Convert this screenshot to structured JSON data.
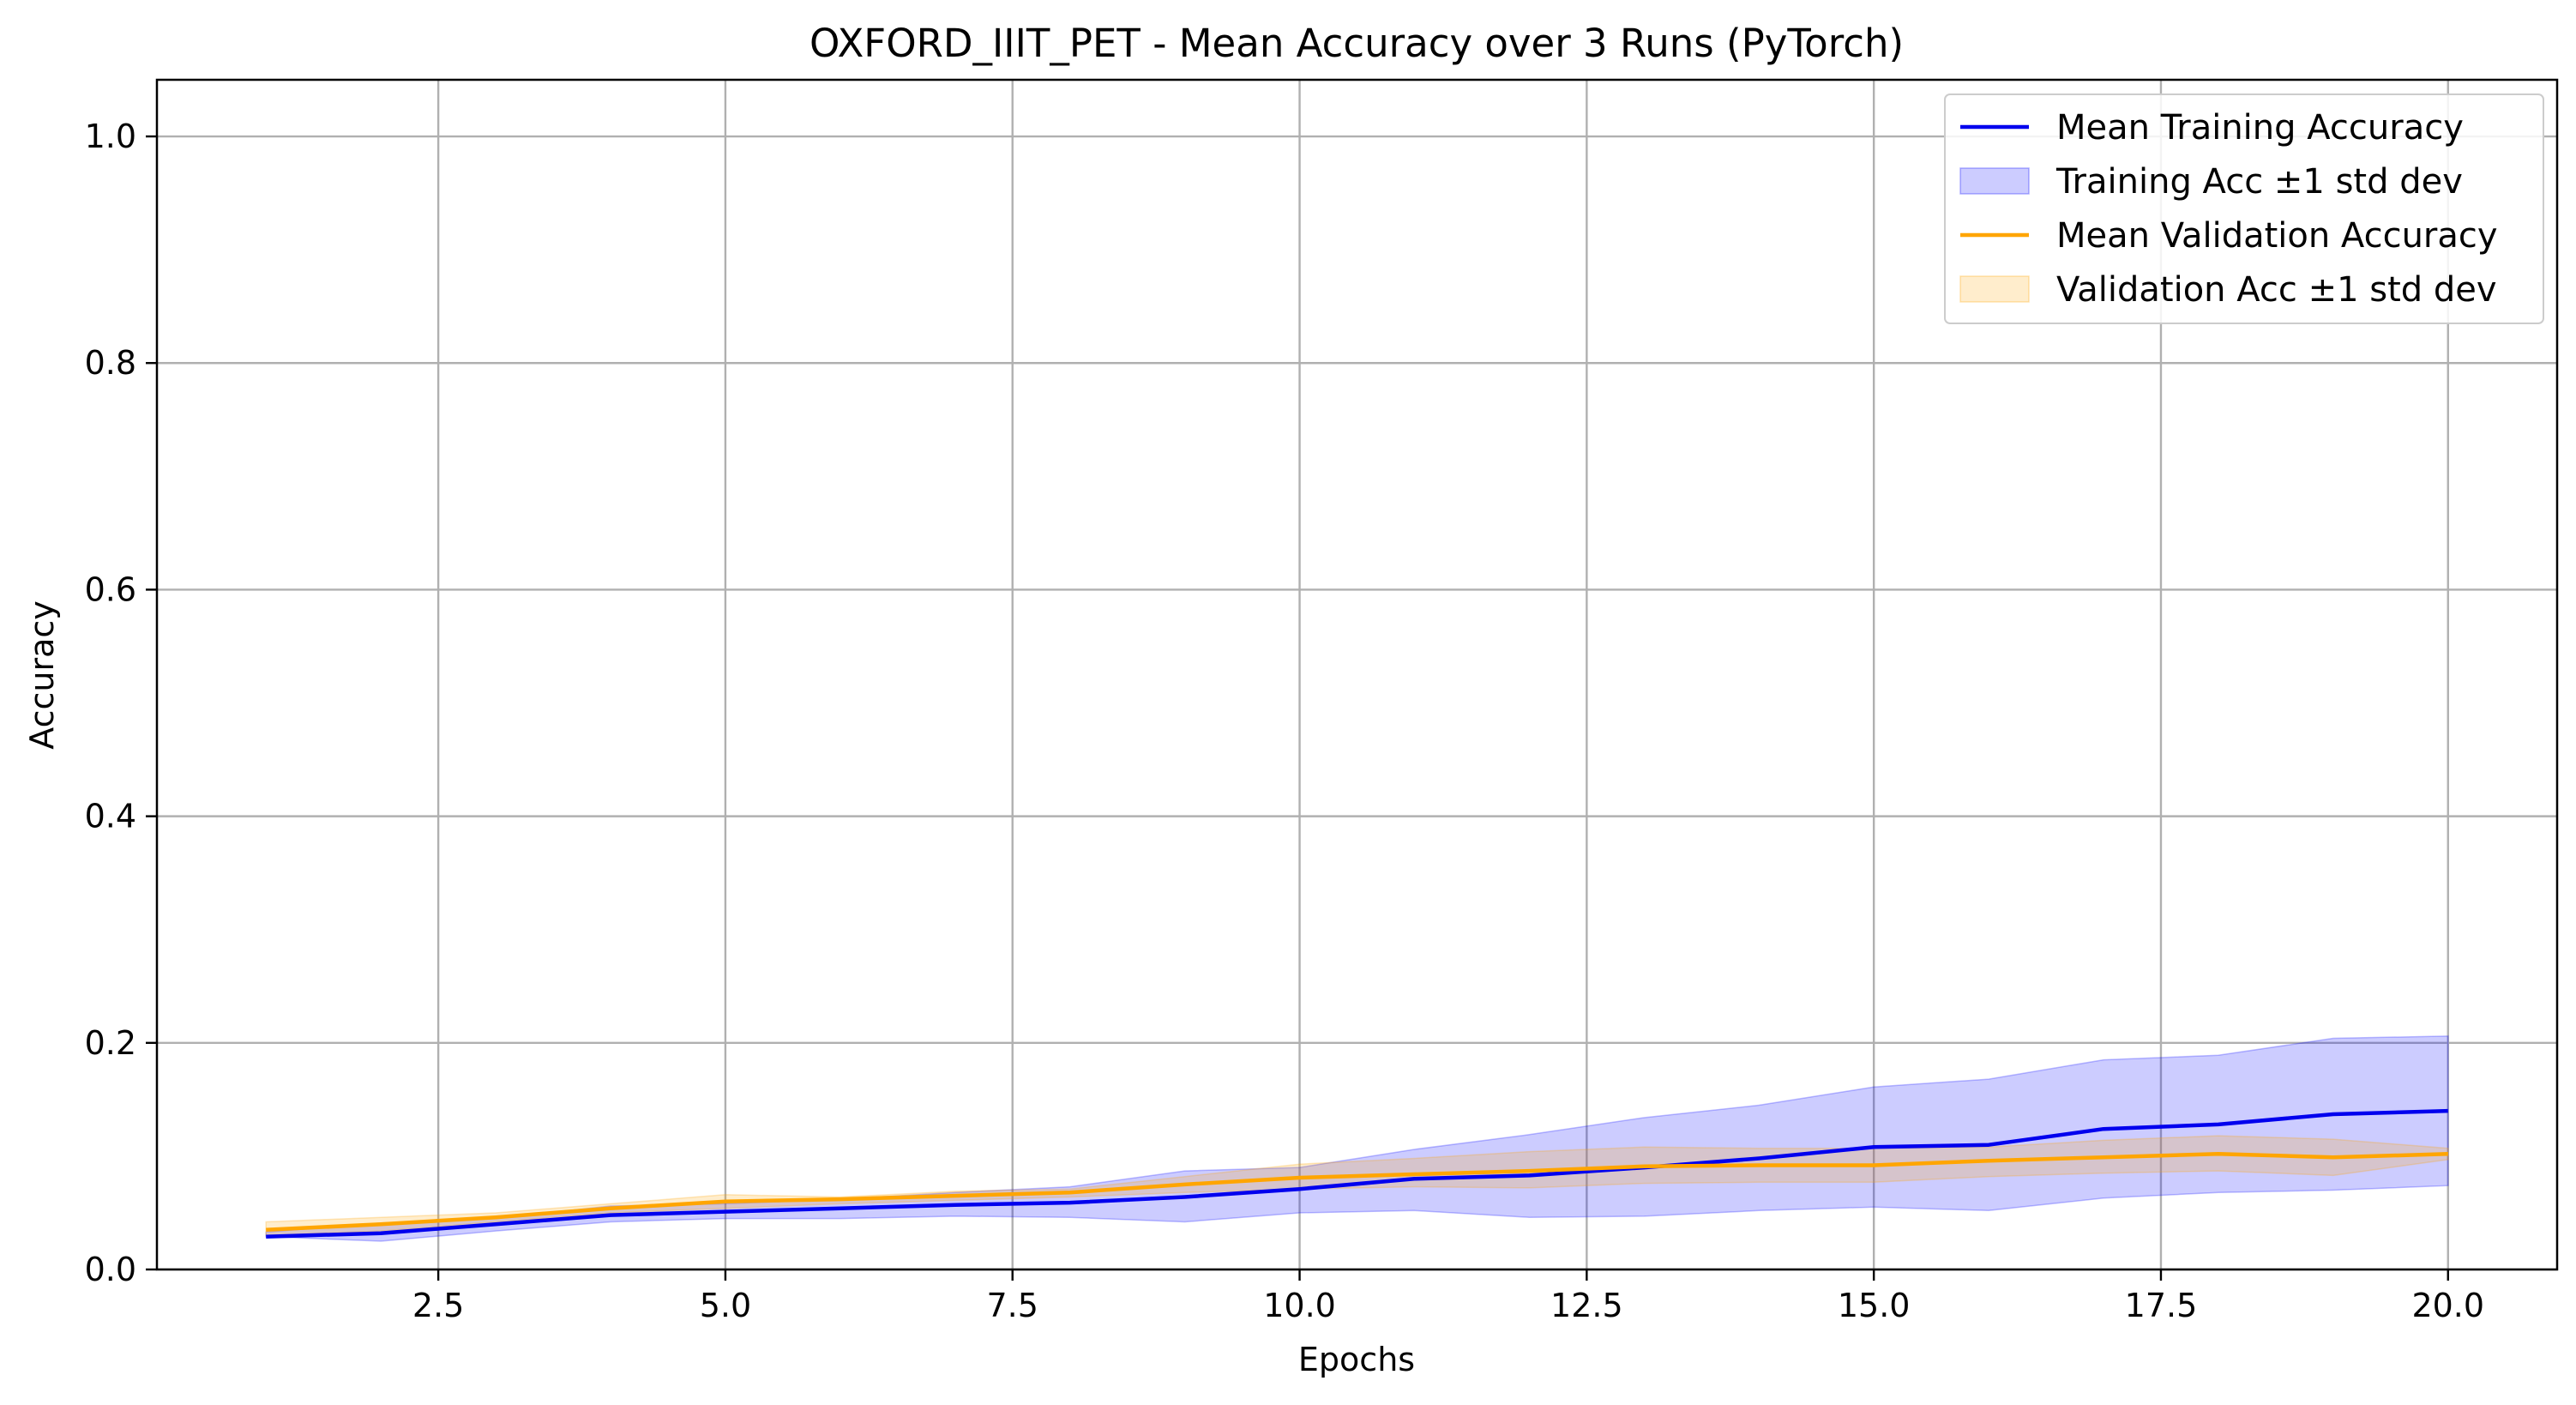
{
  "chart_data": {
    "type": "line",
    "title": "OXFORD_IIIT_PET - Mean Accuracy over 3 Runs (PyTorch)",
    "xlabel": "Epochs",
    "ylabel": "Accuracy",
    "xlim": [
      0.05,
      20.95
    ],
    "ylim": [
      0.0,
      1.05
    ],
    "xticks": [
      2.5,
      5.0,
      7.5,
      10.0,
      12.5,
      15.0,
      17.5,
      20.0
    ],
    "xtick_labels": [
      "2.5",
      "5.0",
      "7.5",
      "10.0",
      "12.5",
      "15.0",
      "17.5",
      "20.0"
    ],
    "yticks": [
      0.0,
      0.2,
      0.4,
      0.6,
      0.8,
      1.0
    ],
    "ytick_labels": [
      "0.0",
      "0.2",
      "0.4",
      "0.6",
      "0.8",
      "1.0"
    ],
    "grid": true,
    "legend_position": "top-right",
    "x": [
      1,
      2,
      3,
      4,
      5,
      6,
      7,
      8,
      9,
      10,
      11,
      12,
      13,
      14,
      15,
      16,
      17,
      18,
      19,
      20
    ],
    "series": [
      {
        "name": "Mean Training Accuracy",
        "band_name": "Training Acc ±1 std dev",
        "color": "#0000ee",
        "band_color": "#0000ff",
        "mean": [
          0.029,
          0.032,
          0.04,
          0.048,
          0.051,
          0.054,
          0.057,
          0.059,
          0.064,
          0.071,
          0.08,
          0.083,
          0.09,
          0.098,
          0.108,
          0.11,
          0.124,
          0.128,
          0.137,
          0.14
        ],
        "upper": [
          0.033,
          0.041,
          0.045,
          0.056,
          0.058,
          0.062,
          0.068,
          0.073,
          0.087,
          0.09,
          0.106,
          0.119,
          0.134,
          0.145,
          0.161,
          0.168,
          0.185,
          0.189,
          0.204,
          0.206
        ],
        "lower": [
          0.029,
          0.025,
          0.034,
          0.042,
          0.045,
          0.045,
          0.047,
          0.046,
          0.042,
          0.05,
          0.052,
          0.046,
          0.047,
          0.052,
          0.055,
          0.052,
          0.063,
          0.068,
          0.07,
          0.074
        ]
      },
      {
        "name": "Mean Validation Accuracy",
        "band_name": "Validation Acc ±1 std dev",
        "color": "#ffa500",
        "band_color": "#ffa500",
        "mean": [
          0.035,
          0.04,
          0.046,
          0.054,
          0.06,
          0.062,
          0.065,
          0.068,
          0.075,
          0.081,
          0.084,
          0.087,
          0.091,
          0.092,
          0.092,
          0.096,
          0.099,
          0.102,
          0.099,
          0.102
        ],
        "upper": [
          0.042,
          0.046,
          0.05,
          0.058,
          0.066,
          0.064,
          0.069,
          0.071,
          0.082,
          0.093,
          0.098,
          0.104,
          0.108,
          0.107,
          0.107,
          0.108,
          0.114,
          0.118,
          0.115,
          0.107
        ],
        "lower": [
          0.03,
          0.034,
          0.042,
          0.05,
          0.054,
          0.058,
          0.061,
          0.064,
          0.068,
          0.071,
          0.073,
          0.072,
          0.076,
          0.077,
          0.077,
          0.082,
          0.085,
          0.087,
          0.083,
          0.097
        ]
      }
    ]
  }
}
